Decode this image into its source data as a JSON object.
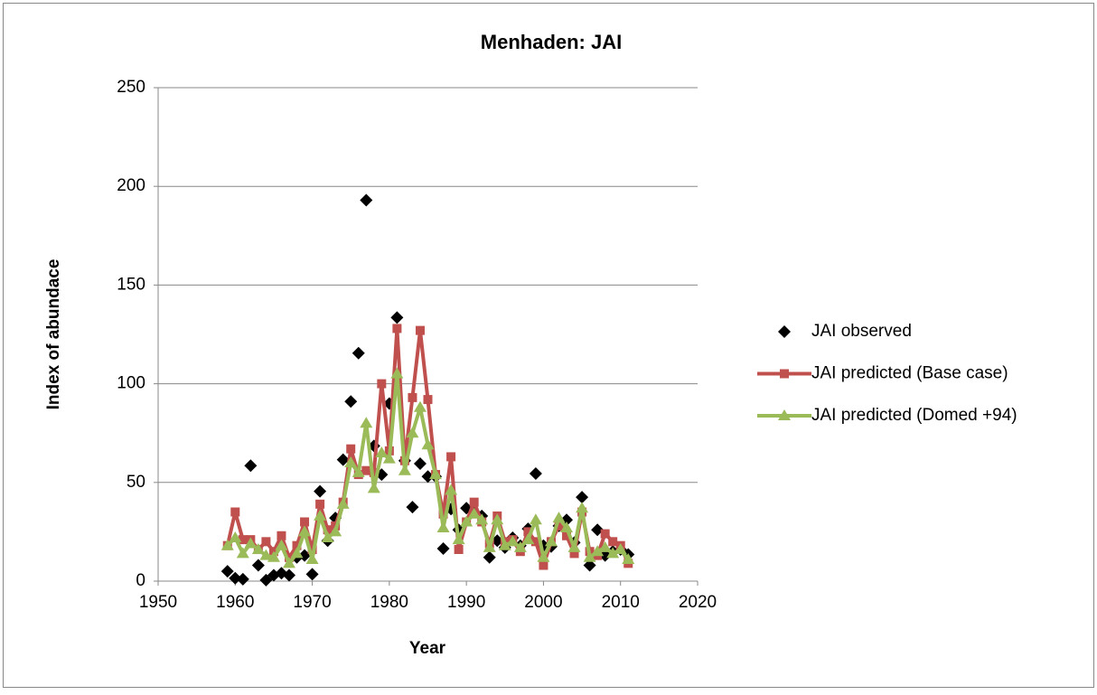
{
  "chart_data": {
    "type": "line",
    "title": "Menhaden: JAI",
    "x_label": "Year",
    "y_label": "Index of abundace",
    "x": [
      1959,
      1960,
      1961,
      1962,
      1963,
      1964,
      1965,
      1966,
      1967,
      1968,
      1969,
      1970,
      1971,
      1972,
      1973,
      1974,
      1975,
      1976,
      1977,
      1978,
      1979,
      1980,
      1981,
      1982,
      1983,
      1984,
      1985,
      1986,
      1987,
      1988,
      1989,
      1990,
      1991,
      1992,
      1993,
      1994,
      1995,
      1996,
      1997,
      1998,
      1999,
      2000,
      2001,
      2002,
      2003,
      2004,
      2005,
      2006,
      2007,
      2008,
      2009,
      2010,
      2011
    ],
    "series": [
      {
        "name": "JAI observed",
        "color": "#000000",
        "marker": "diamond",
        "line": false,
        "values": [
          5,
          1.5,
          1,
          58.5,
          8,
          0.5,
          3,
          4,
          3,
          12,
          13,
          3.5,
          45.5,
          20.5,
          32,
          61.5,
          91,
          115.5,
          193,
          68.5,
          54,
          90,
          133.5,
          61,
          37.5,
          59.5,
          53,
          53,
          16.5,
          36.5,
          26,
          37,
          35,
          33,
          12,
          20.5,
          17,
          22,
          18,
          26.5,
          54.5,
          18,
          17.5,
          28,
          31,
          19.5,
          42.5,
          8,
          26,
          13,
          15,
          16,
          13.5
        ]
      },
      {
        "name": "JAI predicted (Base case)",
        "color": "#c0504d",
        "marker": "square",
        "line": true,
        "values": [
          18,
          35,
          21,
          21,
          16,
          20,
          15,
          23,
          12,
          18,
          30,
          16,
          39,
          26,
          28,
          40,
          67,
          54,
          56,
          55,
          100,
          66,
          128,
          61,
          93,
          127,
          92,
          54,
          34,
          63,
          16,
          30,
          40,
          30,
          19,
          33,
          20,
          21,
          15,
          25,
          20,
          8,
          20,
          28,
          23,
          14,
          35,
          15,
          13,
          24,
          20,
          18,
          9
        ]
      },
      {
        "name": "JAI predicted (Domed +94)",
        "color": "#9bbb59",
        "marker": "triangle",
        "line": true,
        "values": [
          18,
          22,
          14,
          19,
          16,
          13,
          12,
          18,
          9,
          14,
          25,
          11,
          33,
          22,
          25,
          39,
          60,
          55,
          80,
          47,
          65,
          62,
          105,
          56,
          75,
          88,
          69,
          54,
          27,
          46,
          21,
          30,
          34,
          31,
          17,
          31,
          18,
          20,
          17,
          21,
          31,
          12,
          20,
          32,
          27,
          17,
          37,
          12,
          15,
          17,
          14,
          16,
          11
        ]
      }
    ],
    "xlim": [
      1950,
      2020
    ],
    "xticks": [
      1950,
      1960,
      1970,
      1980,
      1990,
      2000,
      2010,
      2020
    ],
    "ylim": [
      0,
      250
    ],
    "yticks": [
      0,
      50,
      100,
      150,
      200,
      250
    ],
    "grid": true,
    "legend": "right"
  }
}
